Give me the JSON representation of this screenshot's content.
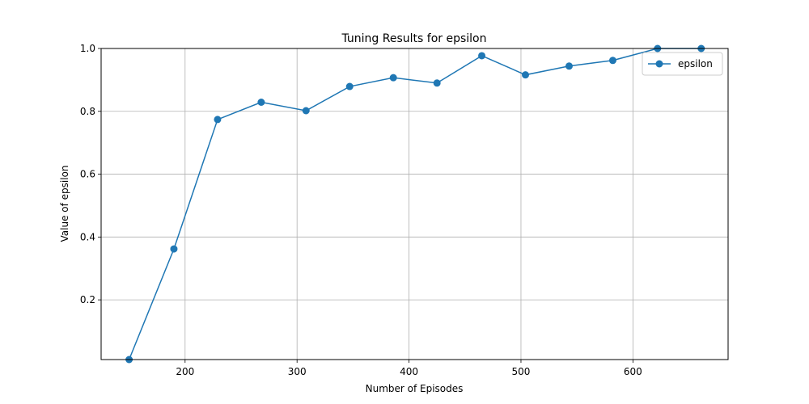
{
  "chart_data": {
    "type": "line",
    "title": "Tuning Results for epsilon",
    "xlabel": "Number of Episodes",
    "ylabel": "Value of epsilon",
    "xlim": [
      125,
      685
    ],
    "ylim": [
      0.01,
      1.0
    ],
    "xticks": [
      200,
      300,
      400,
      500,
      600
    ],
    "xtick_labels": [
      "200",
      "300",
      "400",
      "500",
      "600"
    ],
    "yticks": [
      0.2,
      0.4,
      0.6,
      0.8,
      1.0
    ],
    "ytick_labels": [
      "0.2",
      "0.4",
      "0.6",
      "0.8",
      "1.0"
    ],
    "grid": true,
    "legend": "top-right",
    "color": "#1f77b4",
    "series": [
      {
        "name": "epsilon",
        "x": [
          150,
          190,
          229,
          268,
          308,
          347,
          386,
          425,
          465,
          504,
          543,
          582,
          622,
          661
        ],
        "values": [
          0.01,
          0.362,
          0.774,
          0.829,
          0.802,
          0.879,
          0.907,
          0.89,
          0.977,
          0.916,
          0.944,
          0.962,
          1.0,
          1.0
        ]
      }
    ]
  }
}
